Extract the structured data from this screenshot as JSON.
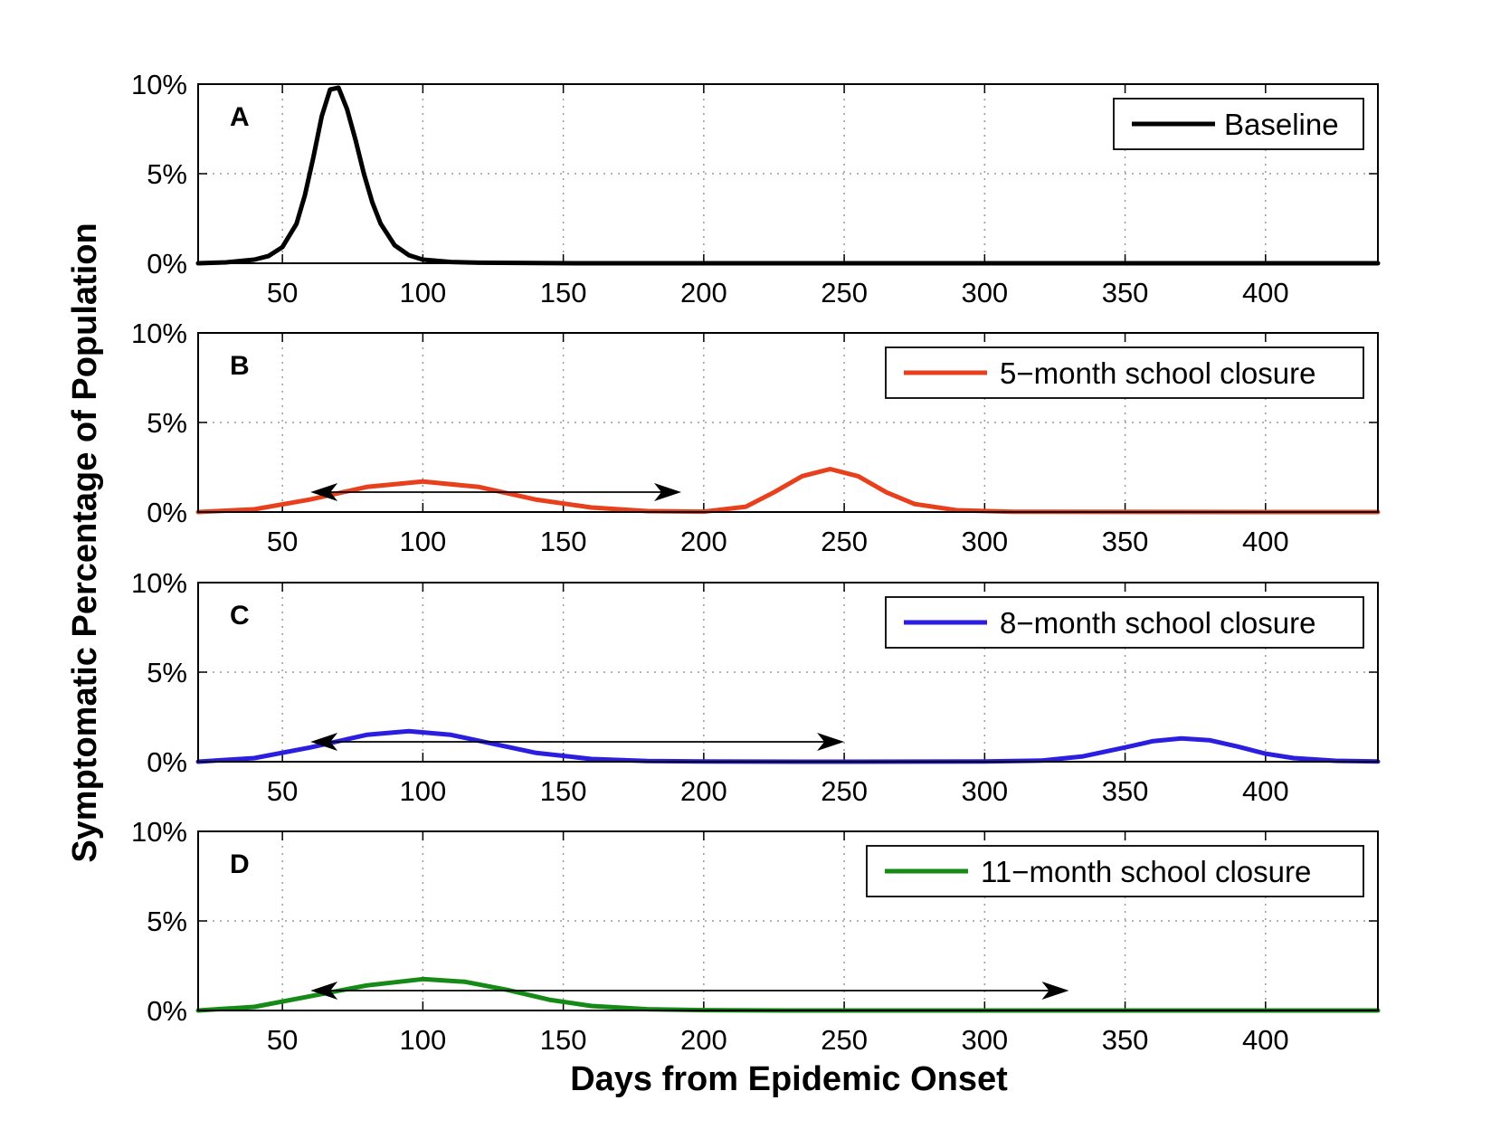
{
  "chart_data": {
    "type": "line",
    "xlabel": "Days from Epidemic Onset",
    "ylabel": "Symptomatic Percentage of Population",
    "xlim": [
      20,
      440
    ],
    "xticks": [
      50,
      100,
      150,
      200,
      250,
      300,
      350,
      400
    ],
    "ylim": [
      0,
      10
    ],
    "yticks": [
      0,
      5,
      10
    ],
    "ytick_labels": [
      "0%",
      "5%",
      "10%"
    ],
    "grid": true,
    "legend_position": "top-right",
    "panels": [
      {
        "letter": "A",
        "legend": "Baseline",
        "color": "#000000",
        "x": [
          20,
          30,
          40,
          45,
          50,
          55,
          58,
          61,
          64,
          67,
          70,
          73,
          76,
          79,
          82,
          85,
          90,
          95,
          100,
          110,
          120,
          140,
          160,
          200,
          260,
          440
        ],
        "y": [
          0,
          0.05,
          0.2,
          0.4,
          0.9,
          2.2,
          3.8,
          5.9,
          8.2,
          9.7,
          9.8,
          8.6,
          6.9,
          5.0,
          3.4,
          2.2,
          1.0,
          0.45,
          0.2,
          0.07,
          0.03,
          0.01,
          0,
          0,
          0,
          0
        ],
        "arrow": null
      },
      {
        "letter": "B",
        "legend": "5−month school closure",
        "color": "#e8401c",
        "x": [
          20,
          40,
          60,
          80,
          100,
          120,
          140,
          160,
          180,
          200,
          215,
          225,
          235,
          245,
          255,
          265,
          275,
          290,
          310,
          440
        ],
        "y": [
          0,
          0.15,
          0.7,
          1.4,
          1.7,
          1.4,
          0.7,
          0.25,
          0.05,
          0.02,
          0.3,
          1.1,
          2.0,
          2.4,
          2.0,
          1.1,
          0.45,
          0.1,
          0.01,
          0
        ],
        "arrow": [
          60,
          192
        ]
      },
      {
        "letter": "C",
        "legend": "8−month school closure",
        "color": "#2b1ee0",
        "x": [
          20,
          40,
          60,
          80,
          95,
          110,
          125,
          140,
          160,
          180,
          200,
          250,
          300,
          320,
          335,
          350,
          360,
          370,
          380,
          390,
          400,
          410,
          425,
          440
        ],
        "y": [
          0,
          0.2,
          0.8,
          1.5,
          1.7,
          1.5,
          1.0,
          0.5,
          0.15,
          0.04,
          0.01,
          0,
          0.01,
          0.06,
          0.3,
          0.8,
          1.15,
          1.3,
          1.2,
          0.85,
          0.45,
          0.2,
          0.05,
          0.01
        ],
        "arrow": [
          60,
          250
        ]
      },
      {
        "letter": "D",
        "legend": "11−month school closure",
        "color": "#168a16",
        "x": [
          20,
          40,
          60,
          80,
          100,
          115,
          130,
          145,
          160,
          180,
          200,
          230,
          440
        ],
        "y": [
          0,
          0.2,
          0.8,
          1.4,
          1.75,
          1.6,
          1.15,
          0.6,
          0.25,
          0.07,
          0.02,
          0,
          0
        ],
        "arrow": [
          60,
          330
        ]
      }
    ]
  }
}
